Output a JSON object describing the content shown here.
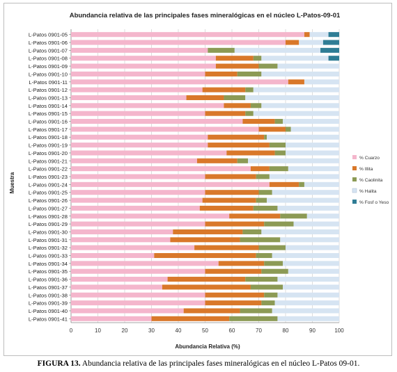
{
  "caption": {
    "label": "FIGURA 13.",
    "text": " Abundancia relativa de las principales fases mineralógicas en el núcleo L-Patos 09-01."
  },
  "chart_data": {
    "type": "bar",
    "orientation": "horizontal",
    "stacked": true,
    "title": "Abundancia relativa de las principales fases mineralógicas en el núcleo L-Patos-09-01",
    "xlabel": "Abundancia Relativa (%)",
    "ylabel": "Muestra",
    "xlim": [
      0,
      100
    ],
    "xticks": [
      0,
      10,
      20,
      30,
      40,
      50,
      60,
      70,
      80,
      90,
      100
    ],
    "grid": "vertical",
    "legend_position": "right",
    "categories": [
      "L-Patos 0901-05",
      "L-Patos 0901-06",
      "L-Patos 0901-07",
      "L-Patos 0901-08",
      "L-Patos 0901-09",
      "L-Patos 0901-10",
      "L-Patos 0901-11",
      "L-Patos 0901-12",
      "L-Patos 0901-13",
      "L-Patos 0901-14",
      "L-Patos 0901-15",
      "L-Patos 0901-16",
      "L-Patos 0901-17",
      "L-Patos 0901-18",
      "L-Patos 0901-19",
      "L-Patos 0901-20",
      "L-Patos 0901-21",
      "L-Patos 0901-22",
      "L-Patos 0901-23",
      "L-Patos 0901-24",
      "L-Patos 0901-25",
      "L-Patos 0901-26",
      "L-Patos 0901-27",
      "L-Patos 0901-28",
      "L-Patos 0901-29",
      "L-Patos 0901-30",
      "L-Patos 0901-31",
      "L-Patos 0901-32",
      "L-Patos 0901-33",
      "L-Patos 0901-34",
      "L-Patos 0901-35",
      "L-Patos 0901-36",
      "L-Patos 0901-37",
      "L-Patos 0901-38",
      "L-Patos 0901-39",
      "L-Patos 0901-40",
      "L-Patos 0901-41"
    ],
    "series": [
      {
        "name": "% Cuarzo",
        "color": "#f4b6cc",
        "values": [
          87,
          80,
          51,
          54,
          54,
          50,
          81,
          49,
          43,
          57,
          50,
          64,
          70,
          51,
          51,
          58,
          47,
          67,
          50,
          74,
          50,
          49,
          48,
          59,
          50,
          38,
          37,
          46,
          31,
          55,
          50,
          36,
          34,
          50,
          50,
          42,
          30
        ]
      },
      {
        "name": "% Illita",
        "color": "#d9782a",
        "values": [
          2,
          5,
          0,
          14,
          16,
          12,
          6,
          16,
          14,
          10,
          15,
          12,
          10,
          21,
          23,
          18,
          15,
          7,
          19,
          11,
          20,
          20,
          20,
          19,
          22,
          26,
          26,
          24,
          38,
          17,
          21,
          29,
          33,
          22,
          21,
          21,
          29
        ]
      },
      {
        "name": "% Caolinita",
        "color": "#8c9a55",
        "values": [
          0,
          0,
          10,
          3,
          7,
          9,
          0,
          3,
          8,
          4,
          3,
          3,
          2,
          1,
          6,
          4,
          4,
          7,
          5,
          2,
          5,
          4,
          9,
          10,
          11,
          7,
          15,
          10,
          6,
          7,
          10,
          12,
          12,
          5,
          5,
          12,
          18
        ]
      },
      {
        "name": "% Halita",
        "color": "#d6e4f2",
        "values": [
          7,
          9,
          32,
          25,
          23,
          29,
          13,
          32,
          35,
          29,
          32,
          21,
          18,
          27,
          20,
          20,
          34,
          19,
          26,
          13,
          25,
          27,
          23,
          12,
          17,
          29,
          22,
          20,
          25,
          21,
          19,
          23,
          21,
          23,
          24,
          25,
          23
        ]
      },
      {
        "name": "% Fosf o Yeso",
        "color": "#2f7d95",
        "values": [
          4,
          6,
          7,
          4,
          0,
          0,
          0,
          0,
          0,
          0,
          0,
          0,
          0,
          0,
          0,
          0,
          0,
          0,
          0,
          0,
          0,
          0,
          0,
          0,
          0,
          0,
          0,
          0,
          0,
          0,
          0,
          0,
          0,
          0,
          0,
          0,
          0
        ]
      }
    ]
  }
}
